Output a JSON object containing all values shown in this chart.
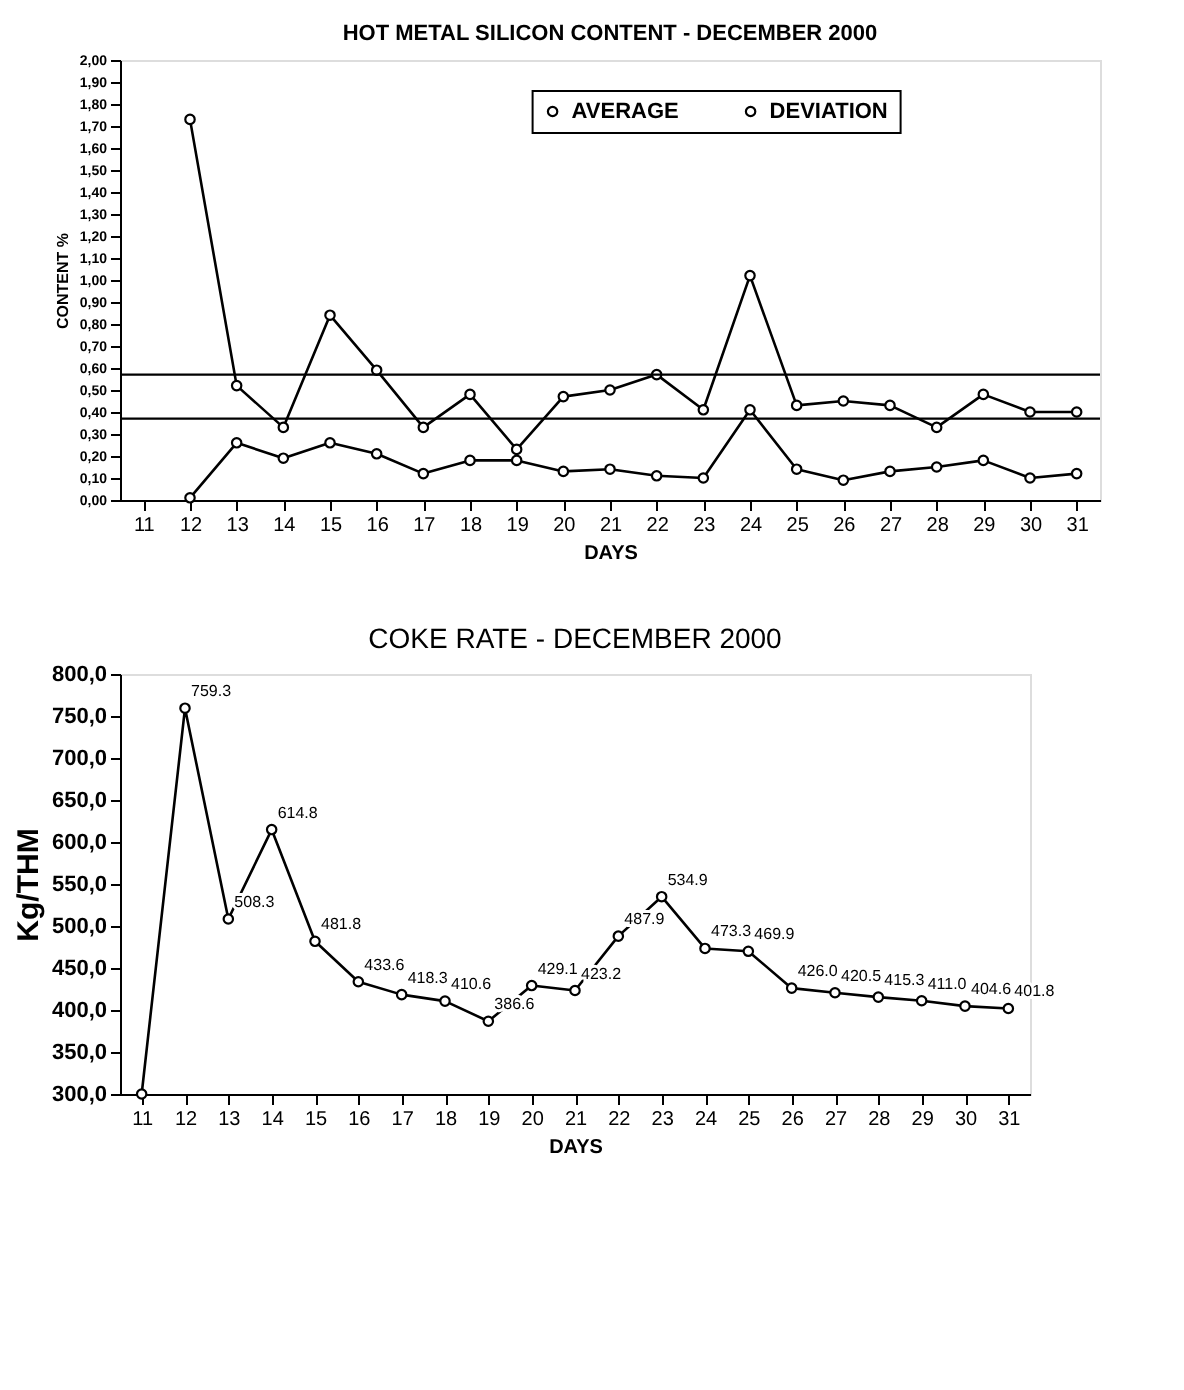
{
  "chart_data": [
    {
      "type": "line",
      "title": "HOT METAL SILICON CONTENT - DECEMBER 2000",
      "xlabel": "DAYS",
      "ylabel": "CONTENT %",
      "categories": [
        "11",
        "12",
        "13",
        "14",
        "15",
        "16",
        "17",
        "18",
        "19",
        "20",
        "21",
        "22",
        "23",
        "24",
        "25",
        "26",
        "27",
        "28",
        "29",
        "30",
        "31"
      ],
      "series": [
        {
          "name": "AVERAGE",
          "color": "#000000",
          "values": [
            null,
            1.73,
            0.52,
            0.33,
            0.84,
            0.59,
            0.33,
            0.48,
            0.23,
            0.47,
            0.5,
            0.57,
            0.41,
            1.02,
            0.43,
            0.45,
            0.43,
            0.33,
            0.48,
            0.4,
            0.4
          ]
        },
        {
          "name": "DEVIATION",
          "color": "#000000",
          "values": [
            null,
            0.01,
            0.26,
            0.19,
            0.26,
            0.21,
            0.12,
            0.18,
            0.18,
            0.13,
            0.14,
            0.11,
            0.1,
            0.41,
            0.14,
            0.09,
            0.13,
            0.15,
            0.18,
            0.1,
            0.12
          ]
        }
      ],
      "ylim": [
        0,
        2
      ],
      "yticks": [
        {
          "value": 0,
          "label": "0,00"
        },
        {
          "value": 0.1,
          "label": "0,10"
        },
        {
          "value": 0.2,
          "label": "0,20"
        },
        {
          "value": 0.3,
          "label": "0,30"
        },
        {
          "value": 0.4,
          "label": "0,40"
        },
        {
          "value": 0.5,
          "label": "0,50"
        },
        {
          "value": 0.6,
          "label": "0,60"
        },
        {
          "value": 0.7,
          "label": "0,70"
        },
        {
          "value": 0.8,
          "label": "0,80"
        },
        {
          "value": 0.9,
          "label": "0,90"
        },
        {
          "value": 1.0,
          "label": "1,00"
        },
        {
          "value": 1.1,
          "label": "1,10"
        },
        {
          "value": 1.2,
          "label": "1,20"
        },
        {
          "value": 1.3,
          "label": "1,30"
        },
        {
          "value": 1.4,
          "label": "1,40"
        },
        {
          "value": 1.5,
          "label": "1,50"
        },
        {
          "value": 1.6,
          "label": "1,60"
        },
        {
          "value": 1.7,
          "label": "1,70"
        },
        {
          "value": 1.8,
          "label": "1,80"
        },
        {
          "value": 1.9,
          "label": "1,90"
        },
        {
          "value": 2.0,
          "label": "2,00"
        }
      ],
      "ref_lines": [
        {
          "axis": "y",
          "value": 0.57,
          "color": "#000000"
        },
        {
          "axis": "y",
          "value": 0.37,
          "color": "#000000"
        }
      ],
      "grid": false,
      "legend": "top right",
      "marker": "circle",
      "line_style": "solid"
    },
    {
      "type": "line",
      "title": "COKE RATE - DECEMBER 2000",
      "xlabel": "DAYS",
      "ylabel": "Kg/THM",
      "categories": [
        "11",
        "12",
        "13",
        "14",
        "15",
        "16",
        "17",
        "18",
        "19",
        "20",
        "21",
        "22",
        "23",
        "24",
        "25",
        "26",
        "27",
        "28",
        "29",
        "30",
        "31"
      ],
      "series": [
        {
          "color": "#000000",
          "values": [
            300.0,
            759.3,
            508.3,
            614.8,
            481.8,
            433.6,
            418.3,
            410.6,
            386.6,
            429.1,
            423.2,
            487.9,
            534.9,
            473.3,
            469.9,
            426.0,
            420.5,
            415.3,
            411.0,
            404.6,
            401.8
          ],
          "value_labels": [
            null,
            "759.3",
            "508.3",
            "614.8",
            "481.8",
            "433.6",
            "418.3",
            "410.6",
            "386.6",
            "429.1",
            "423.2",
            "487.9",
            "534.9",
            "473.3",
            "469.9",
            "426.0",
            "420.5",
            "415.3",
            "411.0",
            "404.6",
            "401.8"
          ]
        }
      ],
      "ylim": [
        300,
        800
      ],
      "yticks": [
        {
          "value": 300,
          "label": "300,0"
        },
        {
          "value": 350,
          "label": "350,0"
        },
        {
          "value": 400,
          "label": "400,0"
        },
        {
          "value": 450,
          "label": "450,0"
        },
        {
          "value": 500,
          "label": "500,0"
        },
        {
          "value": 550,
          "label": "550,0"
        },
        {
          "value": 600,
          "label": "600,0"
        },
        {
          "value": 650,
          "label": "650,0"
        },
        {
          "value": 700,
          "label": "700,0"
        },
        {
          "value": 750,
          "label": "750,0"
        },
        {
          "value": 800,
          "label": "800,0"
        }
      ],
      "grid": false,
      "legend": false,
      "marker": "circle",
      "line_style": "solid"
    }
  ]
}
